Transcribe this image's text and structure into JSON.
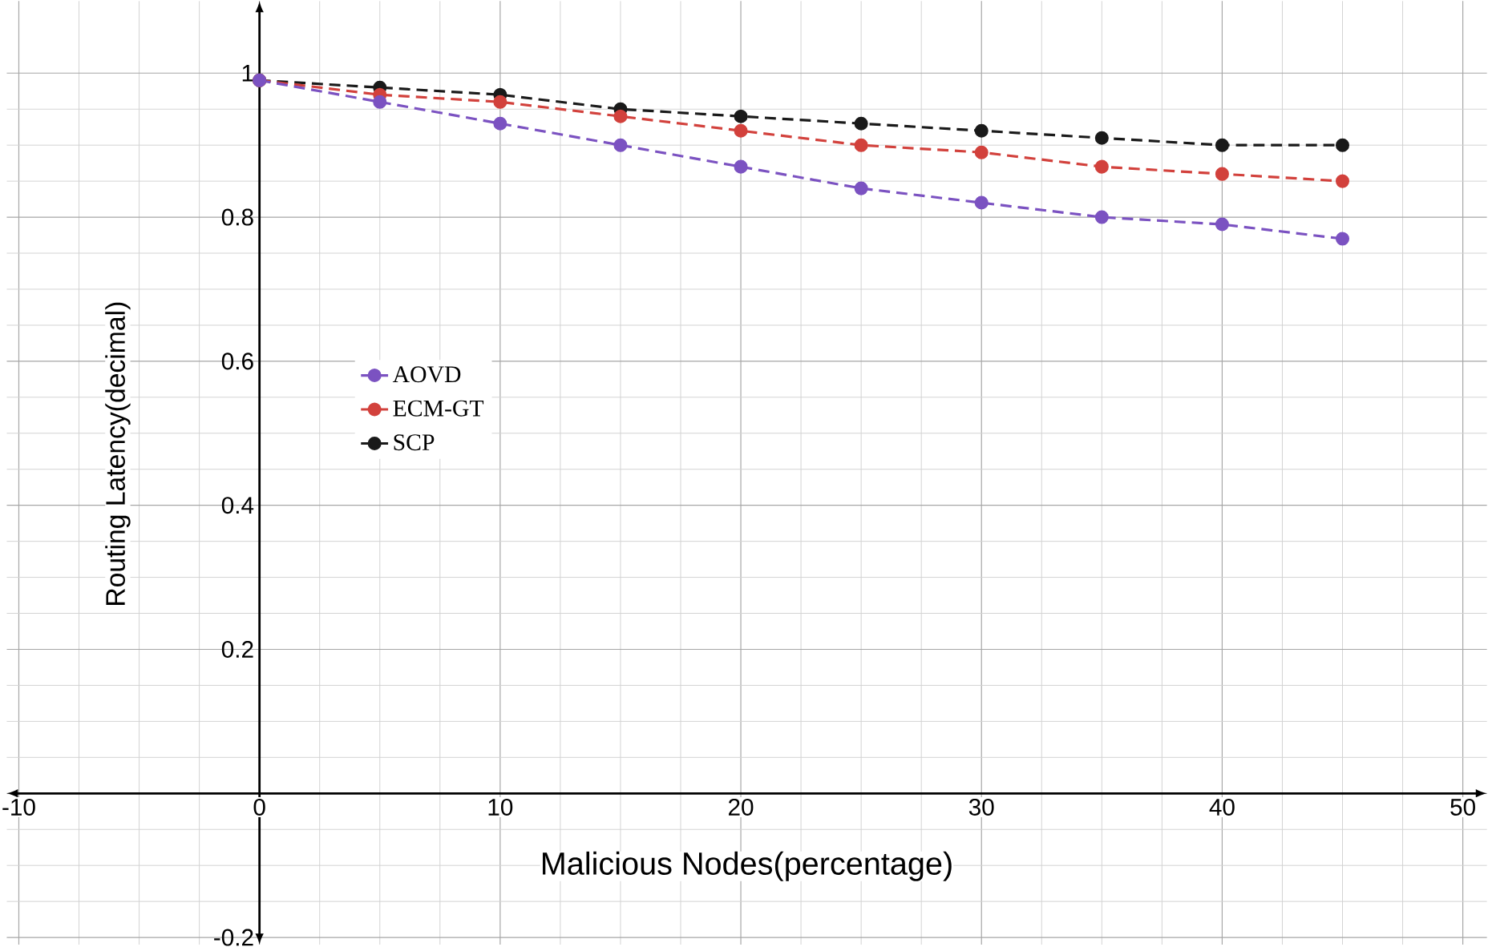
{
  "chart_data": {
    "type": "line",
    "xlabel": "Malicious Nodes(percentage)",
    "ylabel": "Routing Latency(decimal)",
    "x": [
      0,
      5,
      10,
      15,
      20,
      25,
      30,
      35,
      40,
      45
    ],
    "series": [
      {
        "name": "AOVD",
        "color": "#7b52c1",
        "values": [
          0.99,
          0.96,
          0.93,
          0.9,
          0.87,
          0.84,
          0.82,
          0.8,
          0.79,
          0.77
        ]
      },
      {
        "name": "ECM-GT",
        "color": "#d2413c",
        "values": [
          0.99,
          0.97,
          0.96,
          0.94,
          0.92,
          0.9,
          0.89,
          0.87,
          0.86,
          0.85
        ]
      },
      {
        "name": "SCP",
        "color": "#1a1a1a",
        "values": [
          0.99,
          0.98,
          0.97,
          0.95,
          0.94,
          0.93,
          0.92,
          0.91,
          0.9,
          0.9
        ]
      }
    ],
    "xlim": [
      -10.5,
      51
    ],
    "ylim": [
      -0.21,
      1.1
    ],
    "xticks": [
      -10,
      0,
      10,
      20,
      30,
      40,
      50
    ],
    "yticks": [
      -0.2,
      {
        "value": 0,
        "label": null
      },
      0.2,
      0.4,
      0.6,
      0.8,
      1
    ],
    "grid": true,
    "legend": "left",
    "marker": "circle",
    "line_style": "dashed"
  }
}
